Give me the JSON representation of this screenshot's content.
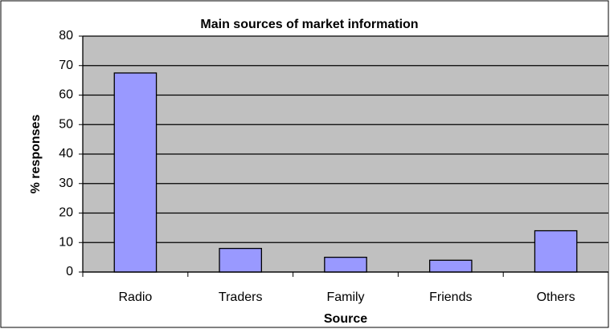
{
  "chart_data": {
    "type": "bar",
    "title": "Main sources of market information",
    "x_label": "Source",
    "y_label": "% responses",
    "categories": [
      "Radio",
      "Traders",
      "Family",
      "Friends",
      "Others"
    ],
    "values": [
      67.5,
      8,
      5,
      4,
      14
    ],
    "color": "#9999ff",
    "plot_background": "#c0c0c0",
    "ylim": [
      0,
      80
    ],
    "yticks": [
      0,
      10,
      20,
      30,
      40,
      50,
      60,
      70,
      80
    ],
    "grid": true
  }
}
